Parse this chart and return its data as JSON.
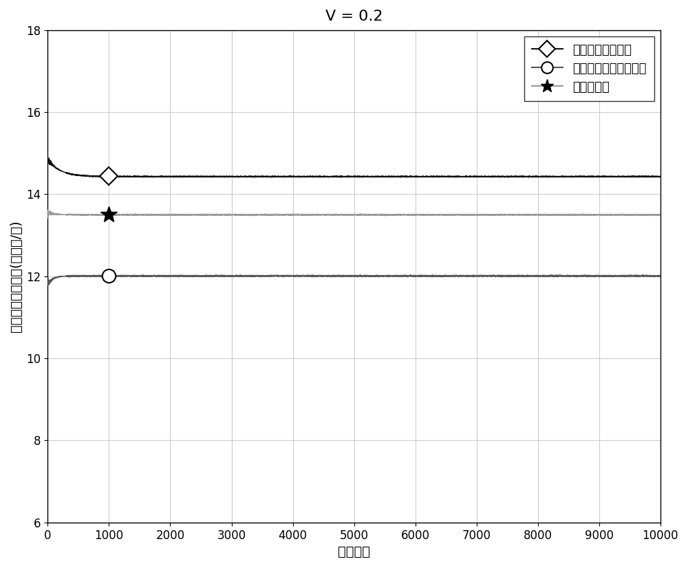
{
  "title": "V = 0.2",
  "xlabel": "迭代次数",
  "ylabel": "系统长期加权速率(兆字节/秒)",
  "xlim": [
    0,
    10000
  ],
  "ylim": [
    6,
    18
  ],
  "yticks": [
    6,
    8,
    10,
    12,
    14,
    16,
    18
  ],
  "xticks": [
    0,
    1000,
    2000,
    3000,
    4000,
    5000,
    6000,
    7000,
    8000,
    9000,
    10000
  ],
  "line1_label": "统计机器学习方法",
  "line2_label": "李雅普诺夫预编码方法",
  "line3_label": "本发明方法",
  "line1_color": "#111111",
  "line2_color": "#555555",
  "line3_color": "#999999",
  "line1_steady": 14.43,
  "line2_steady": 12.01,
  "line3_steady": 13.5,
  "line1_start": 14.85,
  "line2_start": 11.8,
  "line3_start": 13.55,
  "marker_x": 1000,
  "title_fontsize": 16,
  "label_fontsize": 14,
  "tick_fontsize": 12,
  "legend_fontsize": 13,
  "background_color": "#ffffff",
  "grid_color": "#cccccc"
}
